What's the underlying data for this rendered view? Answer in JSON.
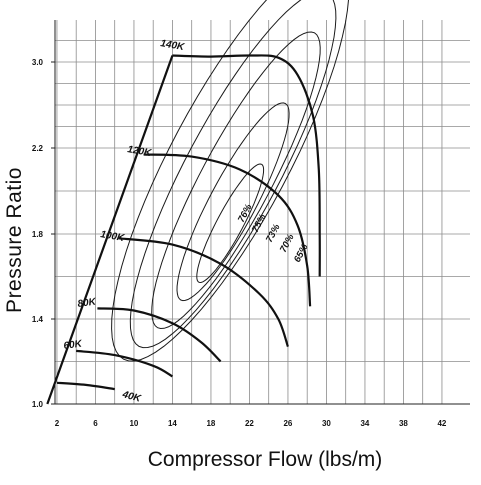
{
  "chart_data": {
    "type": "line",
    "title": "",
    "xlabel": "Compressor Flow (lbs/m)",
    "ylabel": "Pressure Ratio",
    "x_ticks": [
      2,
      6,
      10,
      14,
      18,
      22,
      26,
      30,
      34,
      38,
      42
    ],
    "y_ticks": [
      1.0,
      1.4,
      1.8,
      2.2,
      3.0
    ],
    "y_tick_labels": [
      "1.0",
      "1.4",
      "1.8",
      "2.2",
      "3.0"
    ],
    "grid": true,
    "surge_line": [
      [
        1.0,
        1.0
      ],
      [
        14.0,
        3.06
      ]
    ],
    "speed_lines": [
      {
        "label": "40K",
        "points": [
          [
            2.0,
            1.1
          ],
          [
            5.0,
            1.09
          ],
          [
            8.0,
            1.07
          ]
        ]
      },
      {
        "label": "60K",
        "points": [
          [
            4.0,
            1.25
          ],
          [
            8.0,
            1.23
          ],
          [
            12.0,
            1.18
          ],
          [
            14.0,
            1.13
          ]
        ]
      },
      {
        "label": "80K",
        "points": [
          [
            6.2,
            1.45
          ],
          [
            10.0,
            1.44
          ],
          [
            14.0,
            1.38
          ],
          [
            17.0,
            1.29
          ],
          [
            19.0,
            1.2
          ]
        ]
      },
      {
        "label": "100K",
        "points": [
          [
            8.4,
            1.78
          ],
          [
            14.0,
            1.75
          ],
          [
            19.0,
            1.66
          ],
          [
            23.0,
            1.52
          ],
          [
            25.0,
            1.4
          ],
          [
            26.0,
            1.27
          ]
        ]
      },
      {
        "label": "120K",
        "points": [
          [
            11.0,
            2.17
          ],
          [
            16.0,
            2.16
          ],
          [
            21.0,
            2.1
          ],
          [
            25.0,
            1.98
          ],
          [
            27.0,
            1.84
          ],
          [
            28.0,
            1.65
          ],
          [
            28.3,
            1.46
          ]
        ]
      },
      {
        "label": "140K",
        "points": [
          [
            14.0,
            3.06
          ],
          [
            18.0,
            3.05
          ],
          [
            22.0,
            3.06
          ],
          [
            25.0,
            3.04
          ],
          [
            27.0,
            2.88
          ],
          [
            28.6,
            2.5
          ],
          [
            29.2,
            2.1
          ],
          [
            29.3,
            1.8
          ],
          [
            29.3,
            1.6
          ]
        ]
      }
    ],
    "efficiency_islands": [
      {
        "label": "76%",
        "center": [
          20.0,
          1.85
        ],
        "x_halfwidth": 2.6,
        "y_halfheight": 0.3
      },
      {
        "label": "75%",
        "center": [
          20.3,
          1.95
        ],
        "x_halfwidth": 4.6,
        "y_halfheight": 0.5
      },
      {
        "label": "73%",
        "center": [
          20.6,
          2.05
        ],
        "x_halfwidth": 7.0,
        "y_halfheight": 0.75
      },
      {
        "label": "70%",
        "center": [
          20.3,
          2.1
        ],
        "x_halfwidth": 9.4,
        "y_halfheight": 0.9
      },
      {
        "label": "65%",
        "center": [
          20.0,
          2.15
        ],
        "x_halfwidth": 11.8,
        "y_halfheight": 1.02
      }
    ]
  }
}
